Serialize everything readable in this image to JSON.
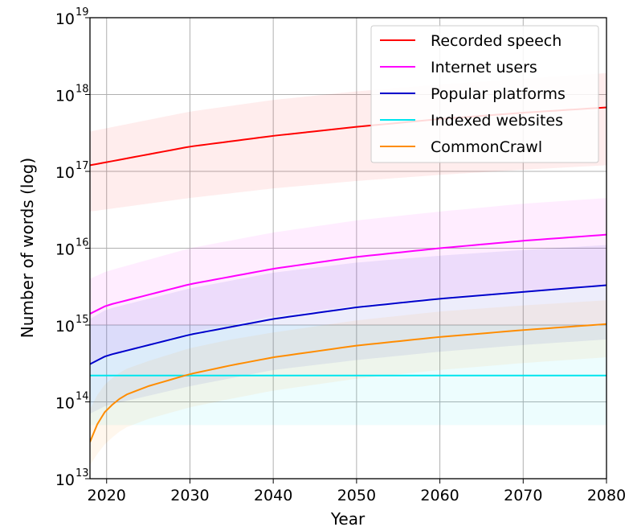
{
  "chart_data": {
    "type": "line",
    "title": "",
    "xlabel": "Year",
    "ylabel": "Number of words (log)",
    "xlim": [
      2018,
      2080
    ],
    "ylim": [
      10000000000000.0,
      1e+19
    ],
    "yscale": "log",
    "grid": true,
    "legend_position": "top-right",
    "xticks": [
      "2020",
      "2030",
      "2040",
      "2050",
      "2060",
      "2070",
      "2080"
    ],
    "xtick_values": [
      2020,
      2030,
      2040,
      2050,
      2060,
      2070,
      2080
    ],
    "yticks": [
      {
        "base": "10",
        "exp": "13",
        "value": 10000000000000.0
      },
      {
        "base": "10",
        "exp": "14",
        "value": 100000000000000.0
      },
      {
        "base": "10",
        "exp": "15",
        "value": 1000000000000000.0
      },
      {
        "base": "10",
        "exp": "16",
        "value": 1e+16
      },
      {
        "base": "10",
        "exp": "17",
        "value": 1e+17
      },
      {
        "base": "10",
        "exp": "18",
        "value": 1e+18
      },
      {
        "base": "10",
        "exp": "19",
        "value": 1e+19
      }
    ],
    "series": [
      {
        "name": "Recorded speech",
        "color": "#ff0000",
        "x": [
          2018,
          2030,
          2040,
          2050,
          2060,
          2070,
          2080
        ],
        "y": [
          1.2e+17,
          2.1e+17,
          2.9e+17,
          3.8e+17,
          4.8e+17,
          5.8e+17,
          6.8e+17
        ],
        "band_low": [
          3e+16,
          4.5e+16,
          6e+16,
          7.5e+16,
          9e+16,
          1.05e+17,
          1.2e+17
        ],
        "band_high": [
          3.3e+17,
          6e+17,
          8.5e+17,
          1.1e+18,
          1.35e+18,
          1.6e+18,
          1.9e+18
        ]
      },
      {
        "name": "Internet users",
        "color": "#ff00ff",
        "x": [
          2018,
          2020,
          2030,
          2040,
          2050,
          2060,
          2070,
          2080
        ],
        "y": [
          1400000000000000.0,
          1800000000000000.0,
          3400000000000000.0,
          5400000000000000.0,
          7700000000000000.0,
          1e+16,
          1.25e+16,
          1.5e+16
        ],
        "band_low": [
          300000000000000.0,
          400000000000000.0,
          800000000000000.0,
          1300000000000000.0,
          1800000000000000.0,
          2300000000000000.0,
          2800000000000000.0,
          3300000000000000.0
        ],
        "band_high": [
          4000000000000000.0,
          5000000000000000.0,
          1e+16,
          1.6e+16,
          2.3e+16,
          3e+16,
          3.8e+16,
          4.5e+16
        ]
      },
      {
        "name": "Popular platforms",
        "color": "#0000cc",
        "x": [
          2018,
          2020,
          2030,
          2040,
          2050,
          2060,
          2070,
          2080
        ],
        "y": [
          310000000000000.0,
          400000000000000.0,
          750000000000000.0,
          1200000000000000.0,
          1700000000000000.0,
          2200000000000000.0,
          2700000000000000.0,
          3300000000000000.0
        ],
        "band_low": [
          70000000000000.0,
          90000000000000.0,
          160000000000000.0,
          260000000000000.0,
          350000000000000.0,
          450000000000000.0,
          550000000000000.0,
          650000000000000.0
        ],
        "band_high": [
          1200000000000000.0,
          1600000000000000.0,
          3000000000000000.0,
          4800000000000000.0,
          6500000000000000.0,
          8000000000000000.0,
          9500000000000000.0,
          1.1e+16
        ]
      },
      {
        "name": "Indexed websites",
        "color": "#00e5ee",
        "x": [
          2018,
          2080
        ],
        "y": [
          220000000000000.0,
          220000000000000.0
        ],
        "band_low": [
          50000000000000.0,
          50000000000000.0
        ],
        "band_high": [
          1000000000000000.0,
          1000000000000000.0
        ]
      },
      {
        "name": "CommonCrawl",
        "color": "#ff8c00",
        "x": [
          2018,
          2019,
          2020,
          2022,
          2025,
          2030,
          2035,
          2040,
          2050,
          2060,
          2070,
          2080
        ],
        "y": [
          30000000000000.0,
          55000000000000.0,
          80000000000000.0,
          120000000000000.0,
          160000000000000.0,
          230000000000000.0,
          300000000000000.0,
          380000000000000.0,
          540000000000000.0,
          700000000000000.0,
          860000000000000.0,
          1030000000000000.0
        ],
        "band_low": [
          15000000000000.0,
          22000000000000.0,
          30000000000000.0,
          45000000000000.0,
          60000000000000.0,
          85000000000000.0,
          110000000000000.0,
          140000000000000.0,
          200000000000000.0,
          260000000000000.0,
          320000000000000.0,
          380000000000000.0
        ],
        "band_high": [
          80000000000000.0,
          130000000000000.0,
          180000000000000.0,
          260000000000000.0,
          340000000000000.0,
          500000000000000.0,
          650000000000000.0,
          800000000000000.0,
          1150000000000000.0,
          1500000000000000.0,
          1800000000000000.0,
          2100000000000000.0
        ]
      }
    ]
  }
}
